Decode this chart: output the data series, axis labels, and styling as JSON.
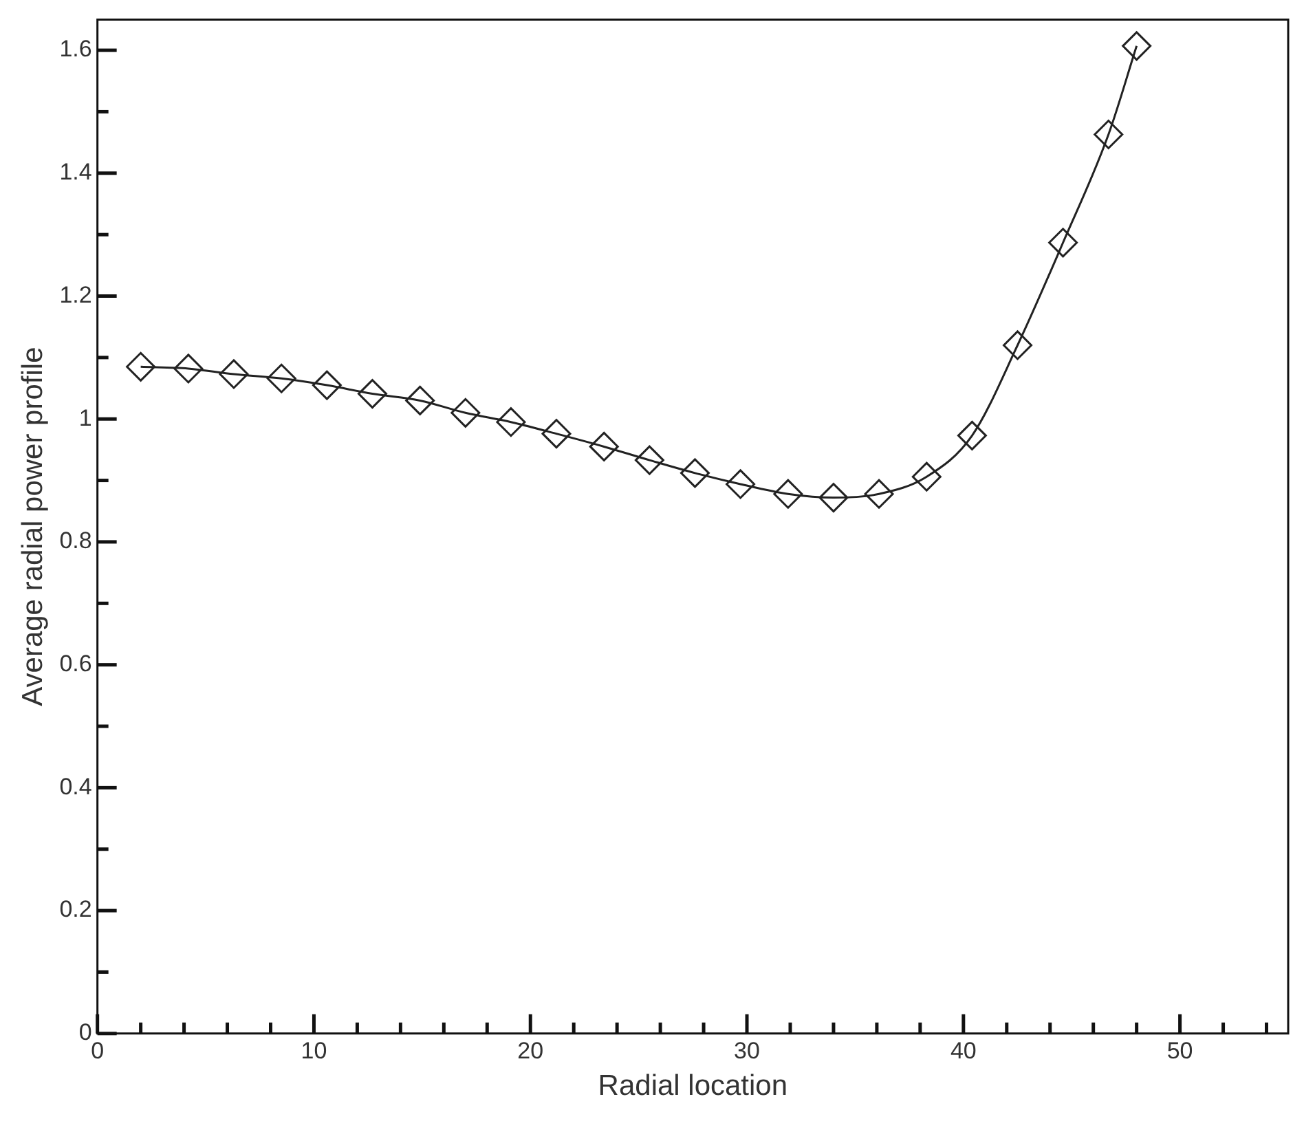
{
  "chart_data": {
    "type": "line",
    "xlabel": "Radial location",
    "ylabel": "Average radial power profile",
    "xlim": [
      0,
      55
    ],
    "ylim": [
      0,
      1.65
    ],
    "xticks": [
      0,
      {
        "value": 2,
        "label": null
      },
      {
        "value": 4,
        "label": null
      },
      {
        "value": 6,
        "label": null
      },
      {
        "value": 8,
        "label": null
      },
      10,
      {
        "value": 12,
        "label": null
      },
      {
        "value": 14,
        "label": null
      },
      {
        "value": 16,
        "label": null
      },
      {
        "value": 18,
        "label": null
      },
      20,
      {
        "value": 22,
        "label": null
      },
      {
        "value": 24,
        "label": null
      },
      {
        "value": 26,
        "label": null
      },
      {
        "value": 28,
        "label": null
      },
      30,
      {
        "value": 32,
        "label": null
      },
      {
        "value": 34,
        "label": null
      },
      {
        "value": 36,
        "label": null
      },
      {
        "value": 38,
        "label": null
      },
      40,
      {
        "value": 42,
        "label": null
      },
      {
        "value": 44,
        "label": null
      },
      {
        "value": 46,
        "label": null
      },
      {
        "value": 48,
        "label": null
      },
      50,
      {
        "value": 52,
        "label": null
      },
      {
        "value": 54,
        "label": null
      }
    ],
    "yticks": [
      0,
      {
        "value": 0.1,
        "label": null
      },
      0.2,
      {
        "value": 0.3,
        "label": null
      },
      0.4,
      {
        "value": 0.5,
        "label": null
      },
      0.6,
      {
        "value": 0.7,
        "label": null
      },
      0.8,
      {
        "value": 0.9,
        "label": null
      },
      1,
      {
        "value": 1.1,
        "label": null
      },
      1.2,
      {
        "value": 1.3,
        "label": null
      },
      1.4,
      {
        "value": 1.5,
        "label": null
      },
      1.6
    ],
    "x": [
      2.0,
      4.2,
      6.3,
      8.5,
      10.6,
      12.7,
      14.9,
      17.0,
      19.1,
      21.2,
      23.4,
      25.5,
      27.6,
      29.7,
      31.9,
      34.0,
      36.1,
      38.3,
      40.4,
      42.5,
      44.6,
      46.7,
      48.0
    ],
    "series": [
      {
        "color": "#222222",
        "values": [
          1.085,
          1.082,
          1.073,
          1.066,
          1.055,
          1.041,
          1.03,
          1.01,
          0.995,
          0.976,
          0.955,
          0.933,
          0.912,
          0.894,
          0.878,
          0.872,
          0.878,
          0.906,
          0.973,
          1.12,
          1.287,
          1.463,
          1.607
        ]
      }
    ],
    "marker": "diamond",
    "line_style": "solid",
    "grid": false,
    "legend": false
  }
}
